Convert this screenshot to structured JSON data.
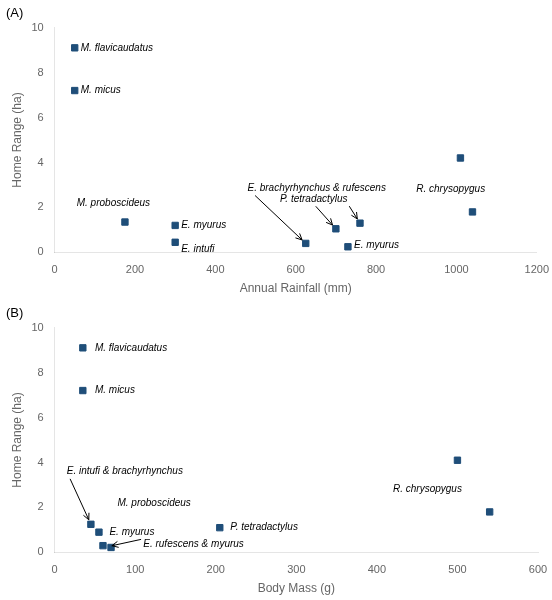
{
  "chart_data": [
    {
      "type": "scatter",
      "title": "(A)",
      "xlabel": "Annual Rainfall (mm)",
      "ylabel": "Home Range (ha)",
      "xlim": [
        0,
        1200
      ],
      "ylim": [
        0,
        10
      ],
      "xticks": [
        0,
        200,
        400,
        600,
        800,
        1000,
        1200
      ],
      "yticks": [
        0,
        2,
        4,
        6,
        8,
        10
      ],
      "x": [
        50,
        50,
        175,
        300,
        300,
        625,
        700,
        760,
        730,
        1010,
        1040
      ],
      "values": [
        9.1,
        7.2,
        1.35,
        1.2,
        0.45,
        0.4,
        1.05,
        1.3,
        0.25,
        4.2,
        1.8
      ],
      "color": "#1F4E79",
      "marker": "square",
      "grid": false,
      "annotations": [
        {
          "text": "M. flavicaudatus",
          "x": 65,
          "y": 9.1
        },
        {
          "text": "M. micus",
          "x": 65,
          "y": 7.2
        },
        {
          "text": "M. proboscideus",
          "x": 55,
          "y": 1.95
        },
        {
          "text": "E. myurus",
          "x": 315,
          "y": 1.2
        },
        {
          "text": "E. intufi",
          "x": 315,
          "y": 0.35
        },
        {
          "text": "E. myurus",
          "x": 745,
          "y": 0.1
        },
        {
          "text": "R. chrysopygus",
          "x": 900,
          "y": 2.8
        },
        {
          "text": "E. brachyrhynchus & rufescens",
          "x": 480,
          "y": 2.85,
          "arrows": [
            {
              "from": [
                480,
                2.85
              ],
              "to": [
                625,
                0.4
              ]
            }
          ]
        },
        {
          "text": "P. tetradactylus",
          "x": 645,
          "y": 2.15,
          "arrows": [
            {
              "from": [
                645,
                2.15
              ],
              "to": [
                700,
                1.05
              ]
            },
            {
              "from": [
                730,
                2.15
              ],
              "to": [
                760,
                1.3
              ]
            }
          ]
        }
      ]
    },
    {
      "type": "scatter",
      "title": "(B)",
      "xlabel": "Body Mass (g)",
      "ylabel": "Home Range (ha)",
      "xlim": [
        0,
        600
      ],
      "ylim": [
        0,
        10
      ],
      "xticks": [
        0,
        100,
        200,
        300,
        400,
        500,
        600
      ],
      "yticks": [
        0,
        2,
        4,
        6,
        8,
        10
      ],
      "x": [
        35,
        35,
        45,
        55,
        60,
        70,
        205,
        500,
        540
      ],
      "values": [
        9.1,
        7.2,
        1.25,
        0.9,
        0.3,
        0.22,
        1.1,
        4.1,
        1.8
      ],
      "color": "#1F4E79",
      "marker": "square",
      "grid": false,
      "annotations": [
        {
          "text": "M. flavicaudatus",
          "x": 50,
          "y": 9.1
        },
        {
          "text": "M. micus",
          "x": 50,
          "y": 7.2
        },
        {
          "text": "M. proboscideus",
          "x": 78,
          "y": 1.95
        },
        {
          "text": "E. myurus",
          "x": 68,
          "y": 0.9
        },
        {
          "text": "P. tetradactylus",
          "x": 218,
          "y": 1.1
        },
        {
          "text": "R. chrysopygus",
          "x": 420,
          "y": 2.8
        },
        {
          "text": "E. intufi & brachyrhynchus",
          "x": 15,
          "y": 3.6,
          "arrows": [
            {
              "from": [
                15,
                3.6
              ],
              "to": [
                45,
                1.25
              ]
            }
          ]
        },
        {
          "text": "E. rufescens & myurus",
          "x": 110,
          "y": 0.6,
          "arrows": [
            {
              "from": [
                110,
                0.6
              ],
              "to": [
                65,
                0.25
              ]
            }
          ]
        }
      ]
    }
  ]
}
